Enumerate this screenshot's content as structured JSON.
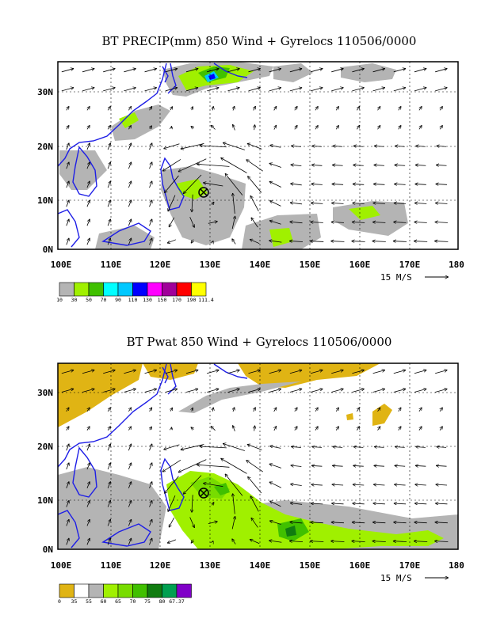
{
  "reference_vector": {
    "label": "15 M/S"
  },
  "panels": [
    {
      "title": "BT PRECIP(mm) 850 Wind + Gyrelocs 110506/0000",
      "lat_ticks": [
        "0N",
        "10N",
        "20N",
        "30N"
      ],
      "lon_ticks": [
        "100E",
        "110E",
        "120E",
        "130E",
        "140E",
        "150E",
        "160E",
        "170E",
        "180"
      ],
      "legend": {
        "colors": [
          "#b4b4b4",
          "#a0f000",
          "#40c000",
          "#00ffff",
          "#00c8ff",
          "#0000ff",
          "#ff00ff",
          "#a0009a",
          "#ff0000",
          "#ffff00"
        ],
        "labels": [
          "10",
          "30",
          "50",
          "70",
          "90",
          "110",
          "130",
          "150",
          "170",
          "190",
          "111.4"
        ]
      },
      "gyre_marker": {
        "lon": 128,
        "lat": 11
      }
    },
    {
      "title": "BT Pwat 850 Wind + Gyrelocs 110506/0000",
      "lat_ticks": [
        "0N",
        "10N",
        "20N",
        "30N"
      ],
      "lon_ticks": [
        "100E",
        "110E",
        "120E",
        "130E",
        "140E",
        "150E",
        "160E",
        "170E",
        "180"
      ],
      "legend": {
        "colors": [
          "#e0b414",
          "#ffffff",
          "#b4b4b4",
          "#a0f000",
          "#78dc00",
          "#40c000",
          "#107c10",
          "#00a050",
          "#8000c8"
        ],
        "labels": [
          "0",
          "35",
          "55",
          "60",
          "65",
          "70",
          "75",
          "80",
          "67.37"
        ]
      },
      "gyre_marker": {
        "lon": 128,
        "lat": 11
      }
    }
  ]
}
